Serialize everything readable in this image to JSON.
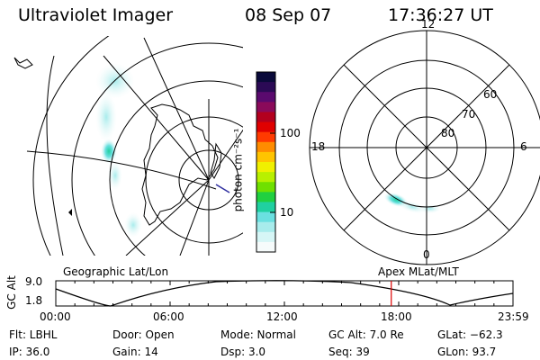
{
  "header": {
    "instrument": "Ultraviolet Imager",
    "date": "08 Sep 07",
    "time": "17:36:27 UT"
  },
  "colorbar": {
    "unit": "photon cm⁻²s⁻¹",
    "ticks": [
      "100",
      "10"
    ],
    "colors": [
      "#0a0a3a",
      "#2b0a55",
      "#5a0a6e",
      "#8a0a5a",
      "#b3001e",
      "#e00000",
      "#ff3a00",
      "#ff8c00",
      "#ffc400",
      "#f0f000",
      "#b8f000",
      "#6fe000",
      "#20d040",
      "#20d0a0",
      "#6ae0e0",
      "#a8ecec",
      "#d6f6f6",
      "#f6fbfb"
    ]
  },
  "polar": {
    "mlt_labels": {
      "top": "12",
      "right": "6",
      "bottom": "0",
      "left": "18"
    },
    "lat_labels": [
      "60",
      "70",
      "80"
    ]
  },
  "panel_labels": {
    "left": "Geographic Lat/Lon",
    "right": "Apex MLat/MLT"
  },
  "altitude_plot": {
    "ylabel": "GC Alt",
    "yticks": [
      "9.0",
      "1.8"
    ],
    "xticks": [
      "00:00",
      "06:00",
      "12:00",
      "18:00",
      "23:59"
    ],
    "marker_time_hours": 17.61,
    "marker_color": "#dd0000"
  },
  "status": {
    "flt": "Flt: LBHL",
    "door": "Door: Open",
    "mode": "Mode: Normal",
    "gc_alt": "GC Alt: 7.0 Re",
    "glat": "GLat: −62.3",
    "ip": "IP: 36.0",
    "gain": "Gain: 14",
    "dsp": "Dsp:    3.0",
    "seq": "Seq: 39",
    "glon": "GLon:  93.7"
  }
}
